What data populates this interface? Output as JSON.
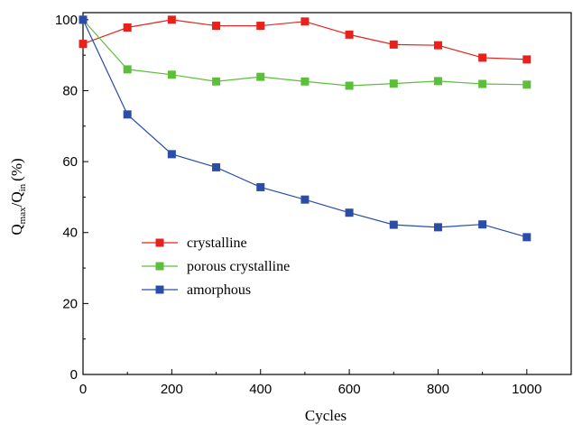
{
  "chart_data": {
    "type": "line",
    "xlabel": "Cycles",
    "ylabel": {
      "q1": "Q",
      "sub1": "max",
      "sep": "/Q",
      "sub2": "in",
      "unit": "(%)"
    },
    "xlim": [
      0,
      1100
    ],
    "ylim": [
      0,
      102
    ],
    "xticks": [
      0,
      200,
      400,
      600,
      800,
      1000
    ],
    "yticks": [
      0,
      20,
      40,
      60,
      80,
      100
    ],
    "x": [
      0,
      100,
      200,
      300,
      400,
      500,
      600,
      700,
      800,
      900,
      1000
    ],
    "grid": false,
    "legend_position": "lower-left",
    "series": [
      {
        "name": "crystalline",
        "color": "#e8211b",
        "values": [
          93.2,
          97.8,
          100.0,
          98.3,
          98.3,
          99.5,
          95.8,
          93.0,
          92.8,
          89.3,
          88.8
        ]
      },
      {
        "name": "porous crystalline",
        "color": "#5cbf3a",
        "values": [
          100.0,
          86.0,
          84.5,
          82.6,
          83.9,
          82.6,
          81.4,
          82.0,
          82.7,
          81.9,
          81.7
        ]
      },
      {
        "name": "amorphous",
        "color": "#2a4da8",
        "values": [
          100.0,
          73.3,
          62.1,
          58.4,
          52.8,
          49.3,
          45.6,
          42.2,
          41.5,
          42.3,
          38.7
        ]
      }
    ]
  }
}
